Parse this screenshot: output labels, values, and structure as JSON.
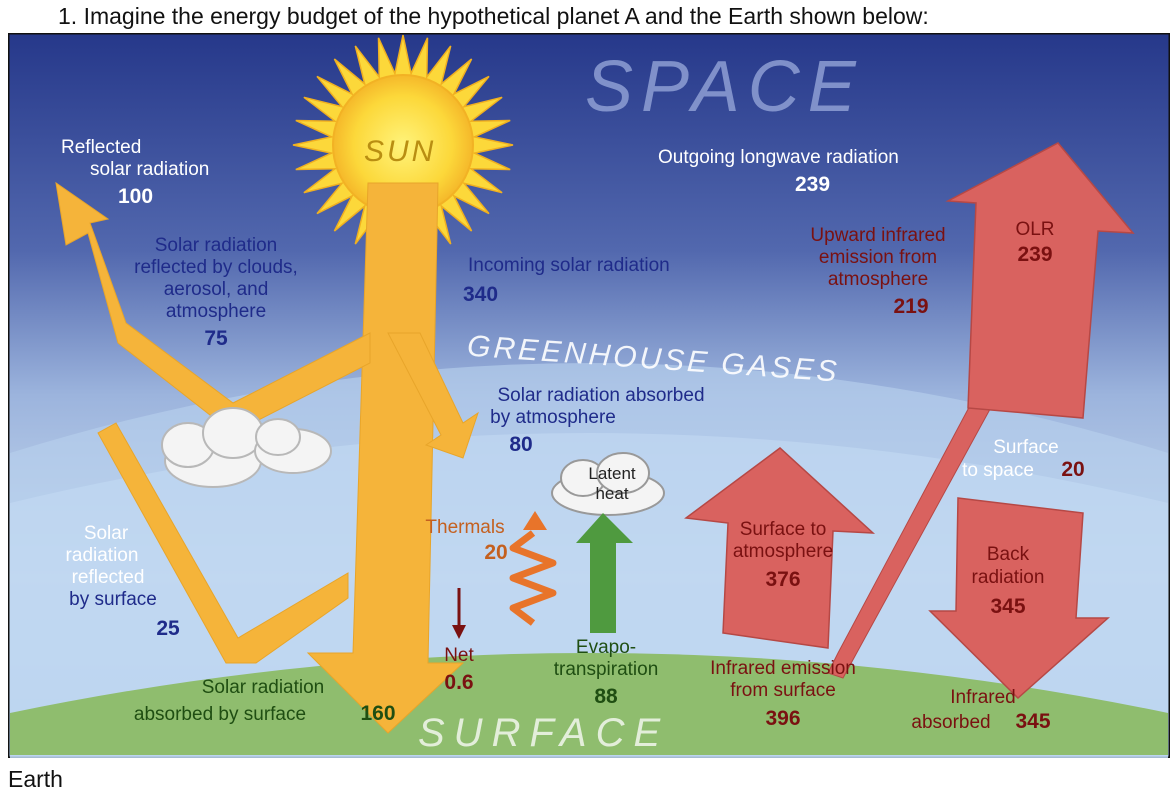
{
  "question": {
    "text": "1.  Imagine the energy budget of the hypothetical planet A and the Earth shown below:"
  },
  "caption": "Earth",
  "diagram": {
    "space_label": "SPACE",
    "greenhouse_label": "GREENHOUSE GASES",
    "surface_label": "SURFACE",
    "sun_label": "SUN",
    "reflected_solar": {
      "line1": "Reflected",
      "line2": "solar radiation",
      "value": "100"
    },
    "reflected_clouds": {
      "line1": "Solar radiation",
      "line2": "reflected by clouds,",
      "line3": "aerosol, and",
      "line4": "atmosphere",
      "value": "75"
    },
    "incoming_solar": {
      "line1": "Incoming solar radiation",
      "value": "340"
    },
    "outgoing_longwave": {
      "line1": "Outgoing longwave radiation",
      "value": "239"
    },
    "upward_infrared": {
      "line1": "Upward infrared",
      "line2": "emission from",
      "line3": "atmosphere",
      "value": "219"
    },
    "olr": {
      "line1": "OLR",
      "value": "239"
    },
    "absorbed_atmosphere": {
      "line1": "Solar radiation absorbed",
      "line2": "by atmosphere",
      "value": "80"
    },
    "surface_to_space": {
      "line1": "Surface",
      "line2": "to space",
      "value": "20"
    },
    "latent_heat": {
      "line1": "Latent",
      "line2": "heat"
    },
    "thermals": {
      "line1": "Thermals",
      "value": "20"
    },
    "reflected_surface": {
      "line1": "Solar",
      "line2": "radiation",
      "line3": "reflected",
      "line4": "by surface",
      "value": "25"
    },
    "surface_to_atmosphere": {
      "line1": "Surface to",
      "line2": "atmosphere",
      "value": "376"
    },
    "back_radiation": {
      "line1": "Back",
      "line2": "radiation",
      "value": "345"
    },
    "net": {
      "line1": "Net",
      "value": "0.6"
    },
    "evapotranspiration": {
      "line1": "Evapo-",
      "line2": "transpiration",
      "value": "88"
    },
    "infrared_emission": {
      "line1": "Infrared emission",
      "line2": "from surface",
      "value": "396"
    },
    "infrared_absorbed": {
      "line1": "Infrared",
      "line2": "absorbed",
      "value": "345"
    },
    "absorbed_surface": {
      "line1": "Solar radiation",
      "line2": "absorbed by surface",
      "value": "160"
    },
    "colors": {
      "solar_arrow": "#f5b43a",
      "infrared_arrow": "#d9625f",
      "evapotranspiration_arrow": "#4f9a3f",
      "thermals": "#e8742a",
      "surface": "#8fbd6e",
      "sky_top": "#2c3f8f",
      "label_blue": "#1f2b8a",
      "label_red": "#7a1111"
    }
  }
}
